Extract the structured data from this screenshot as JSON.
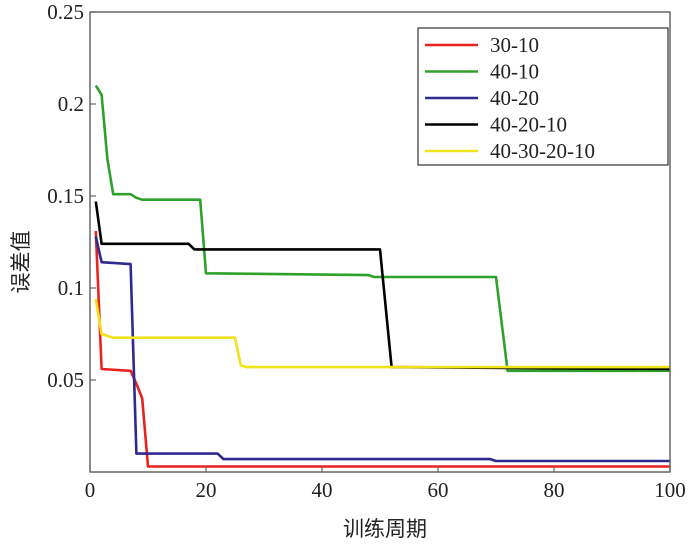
{
  "chart_data": {
    "type": "line",
    "title": "",
    "xlabel": "训练周期",
    "ylabel": "误差值",
    "xlim": [
      0,
      100
    ],
    "ylim": [
      0,
      0.25
    ],
    "xticks": [
      "0",
      "20",
      "40",
      "60",
      "80",
      "100"
    ],
    "xtick_values": [
      0,
      20,
      40,
      60,
      80,
      100
    ],
    "yticks": [
      "0.05",
      "0.1",
      "0.15",
      "0.2",
      "0.25"
    ],
    "ytick_values": [
      0.05,
      0.1,
      0.15,
      0.2,
      0.25
    ],
    "grid": false,
    "legend_position": "top-right",
    "series": [
      {
        "name": "30-10",
        "color": "#e8231f",
        "points": [
          [
            1,
            0.131
          ],
          [
            2,
            0.056
          ],
          [
            7,
            0.055
          ],
          [
            8,
            0.048
          ],
          [
            9,
            0.04
          ],
          [
            10,
            0.003
          ],
          [
            100,
            0.003
          ]
        ]
      },
      {
        "name": "40-10",
        "color": "#2ea12b",
        "points": [
          [
            1,
            0.21
          ],
          [
            2,
            0.205
          ],
          [
            3,
            0.17
          ],
          [
            4,
            0.151
          ],
          [
            7,
            0.151
          ],
          [
            8,
            0.149
          ],
          [
            9,
            0.148
          ],
          [
            19,
            0.148
          ],
          [
            20,
            0.108
          ],
          [
            48,
            0.107
          ],
          [
            49,
            0.106
          ],
          [
            70,
            0.106
          ],
          [
            72,
            0.055
          ],
          [
            100,
            0.055
          ]
        ]
      },
      {
        "name": "40-20",
        "color": "#2e2a8f",
        "points": [
          [
            1,
            0.128
          ],
          [
            2,
            0.114
          ],
          [
            7,
            0.113
          ],
          [
            8,
            0.01
          ],
          [
            22,
            0.01
          ],
          [
            23,
            0.007
          ],
          [
            69,
            0.007
          ],
          [
            70,
            0.006
          ],
          [
            100,
            0.006
          ]
        ]
      },
      {
        "name": "40-20-10",
        "color": "#000000",
        "points": [
          [
            1,
            0.147
          ],
          [
            2,
            0.124
          ],
          [
            17,
            0.124
          ],
          [
            18,
            0.121
          ],
          [
            50,
            0.121
          ],
          [
            52,
            0.057
          ],
          [
            100,
            0.056
          ]
        ]
      },
      {
        "name": "40-30-20-10",
        "color": "#f2e21a",
        "points": [
          [
            1,
            0.094
          ],
          [
            2,
            0.075
          ],
          [
            4,
            0.073
          ],
          [
            25,
            0.073
          ],
          [
            26,
            0.058
          ],
          [
            27,
            0.057
          ],
          [
            100,
            0.057
          ]
        ]
      }
    ]
  }
}
